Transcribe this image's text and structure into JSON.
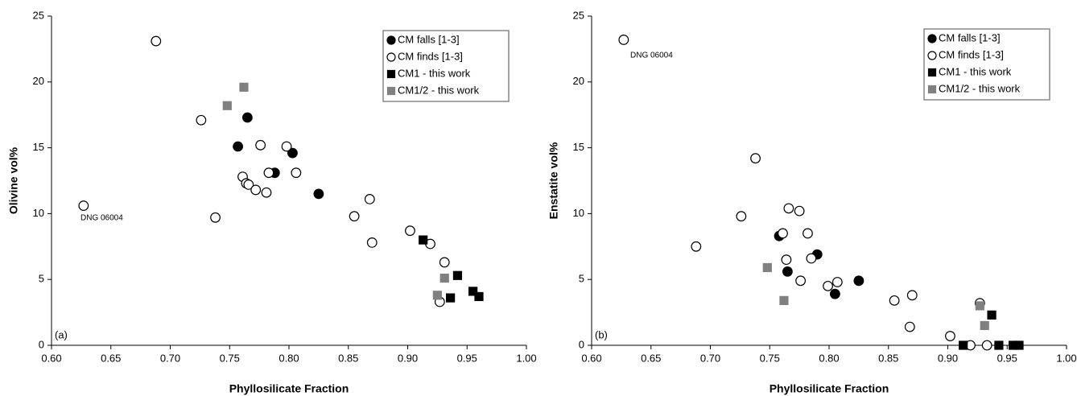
{
  "chart_data": [
    {
      "type": "scatter",
      "panel_label": "(a)",
      "ylabel": "Olivine vol%",
      "xlabel": "Phyllosilicate Fraction",
      "annotation": "DNG 06004",
      "xlim": [
        0.6,
        1.0
      ],
      "ylim": [
        0,
        25
      ],
      "xticks": [
        {
          "value": 0.6,
          "label": "0.60"
        },
        0.65,
        {
          "value": 0.7,
          "label": "0.70"
        },
        0.75,
        {
          "value": 0.8,
          "label": "0.80"
        },
        0.85,
        {
          "value": 0.9,
          "label": "0.90"
        },
        0.95,
        {
          "value": 1.0,
          "label": "1.00"
        }
      ],
      "yticks": [
        0,
        5,
        10,
        15,
        20,
        25
      ],
      "legend": "upper right",
      "series": [
        {
          "name": "CM falls [1-3]",
          "marker": "circle",
          "color": "#000000",
          "filled": true,
          "x": [
            0.765,
            0.757,
            0.803,
            0.788,
            0.825
          ],
          "values": [
            17.3,
            15.1,
            14.6,
            13.1,
            11.5
          ]
        },
        {
          "name": "CM finds [1-3]",
          "marker": "circle",
          "color": "#000000",
          "filled": false,
          "x": [
            0.688,
            0.726,
            0.776,
            0.798,
            0.783,
            0.806,
            0.761,
            0.764,
            0.766,
            0.772,
            0.781,
            0.627,
            0.738,
            0.868,
            0.855,
            0.87,
            0.902,
            0.919,
            0.931,
            0.927
          ],
          "values": [
            23.1,
            17.1,
            15.2,
            15.1,
            13.1,
            13.1,
            12.8,
            12.3,
            12.2,
            11.8,
            11.6,
            10.6,
            9.7,
            11.1,
            9.8,
            7.8,
            8.7,
            7.7,
            6.3,
            3.3
          ]
        },
        {
          "name": "CM1 - this work",
          "marker": "square",
          "color": "#000000",
          "filled": true,
          "x": [
            0.913,
            0.942,
            0.955,
            0.96,
            0.936
          ],
          "values": [
            8.0,
            5.3,
            4.1,
            3.7,
            3.6
          ]
        },
        {
          "name": "CM1/2 - this work",
          "marker": "square",
          "color": "#808080",
          "filled": true,
          "x": [
            0.762,
            0.748,
            0.931,
            0.925
          ],
          "values": [
            19.6,
            18.2,
            5.1,
            3.8
          ]
        }
      ]
    },
    {
      "type": "scatter",
      "panel_label": "(b)",
      "ylabel": "Enstatite vol%",
      "xlabel": "Phyllosilicate Fraction",
      "annotation": "DNG 06004",
      "xlim": [
        0.6,
        1.0
      ],
      "ylim": [
        0,
        25
      ],
      "xticks": [
        {
          "value": 0.6,
          "label": "0.60"
        },
        0.65,
        {
          "value": 0.7,
          "label": "0.70"
        },
        0.75,
        {
          "value": 0.8,
          "label": "0.80"
        },
        0.85,
        {
          "value": 0.9,
          "label": "0.90"
        },
        0.95,
        {
          "value": 1.0,
          "label": "1.00"
        }
      ],
      "yticks": [
        0,
        5,
        10,
        15,
        20,
        25
      ],
      "legend": "upper right",
      "series": [
        {
          "name": "CM falls [1-3]",
          "marker": "circle",
          "color": "#000000",
          "filled": true,
          "x": [
            0.758,
            0.79,
            0.765,
            0.825,
            0.805
          ],
          "values": [
            8.3,
            6.9,
            5.6,
            4.9,
            3.9
          ]
        },
        {
          "name": "CM finds [1-3]",
          "marker": "circle",
          "color": "#000000",
          "filled": false,
          "x": [
            0.627,
            0.738,
            0.726,
            0.766,
            0.775,
            0.688,
            0.761,
            0.782,
            0.785,
            0.764,
            0.776,
            0.799,
            0.807,
            0.855,
            0.87,
            0.868,
            0.902,
            0.927,
            0.919,
            0.933
          ],
          "values": [
            23.2,
            14.2,
            9.8,
            10.4,
            10.2,
            7.5,
            8.5,
            8.5,
            6.6,
            6.5,
            4.9,
            4.5,
            4.8,
            3.4,
            3.8,
            1.4,
            0.7,
            3.2,
            0,
            0
          ]
        },
        {
          "name": "CM1 - this work",
          "marker": "square",
          "color": "#000000",
          "filled": true,
          "x": [
            0.937,
            0.913,
            0.943,
            0.955,
            0.96
          ],
          "values": [
            2.3,
            0,
            0,
            0,
            0
          ]
        },
        {
          "name": "CM1/2 - this work",
          "marker": "square",
          "color": "#808080",
          "filled": true,
          "x": [
            0.748,
            0.762,
            0.927,
            0.931
          ],
          "values": [
            5.9,
            3.4,
            3.0,
            1.5
          ]
        }
      ]
    }
  ]
}
